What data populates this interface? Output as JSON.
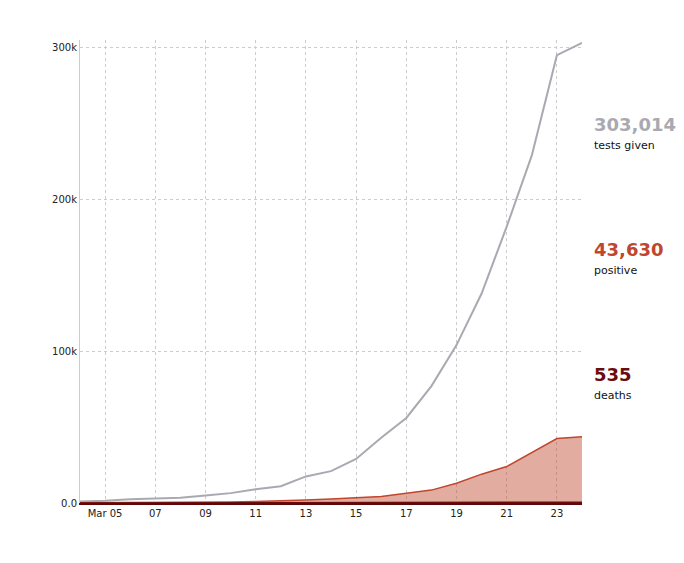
{
  "chart_data": {
    "type": "line",
    "x": [
      4,
      5,
      6,
      7,
      8,
      9,
      10,
      11,
      12,
      13,
      14,
      15,
      16,
      17,
      18,
      19,
      20,
      21,
      22,
      23,
      24
    ],
    "xlim": [
      4,
      24
    ],
    "xticks": [
      {
        "value": 5,
        "label": "Mar 05"
      },
      {
        "value": 7,
        "label": "07"
      },
      {
        "value": 9,
        "label": "09"
      },
      {
        "value": 11,
        "label": "11"
      },
      {
        "value": 13,
        "label": "13"
      },
      {
        "value": 15,
        "label": "15"
      },
      {
        "value": 17,
        "label": "17"
      },
      {
        "value": 19,
        "label": "19"
      },
      {
        "value": 21,
        "label": "21"
      },
      {
        "value": 23,
        "label": "23"
      }
    ],
    "ylim": [
      0,
      305000
    ],
    "yticks": [
      {
        "value": 0,
        "label": "0.0"
      },
      {
        "value": 100000,
        "label": "100k"
      },
      {
        "value": 200000,
        "label": "200k"
      },
      {
        "value": 300000,
        "label": "300k"
      }
    ],
    "grid": true,
    "series": [
      {
        "name": "tests given",
        "label": "303,014",
        "type": "line",
        "color": "#a9a9b1",
        "values": [
          1000,
          1500,
          2500,
          3000,
          3500,
          5000,
          6500,
          9000,
          11000,
          17500,
          21000,
          29000,
          43000,
          56000,
          77000,
          104000,
          138000,
          182000,
          229000,
          295000,
          303014
        ]
      },
      {
        "name": "positive",
        "label": "43,630",
        "type": "area",
        "color": "#c0462e",
        "values": [
          100,
          150,
          200,
          250,
          400,
          500,
          700,
          1000,
          1300,
          1900,
          2600,
          3300,
          4300,
          6400,
          8500,
          13000,
          19000,
          24000,
          33000,
          42500,
          43630
        ]
      },
      {
        "name": "deaths",
        "label": "535",
        "type": "area",
        "color": "#6b0d0d",
        "values": [
          10,
          12,
          15,
          19,
          22,
          26,
          30,
          38,
          45,
          55,
          65,
          80,
          100,
          130,
          170,
          220,
          290,
          360,
          430,
          500,
          535
        ]
      }
    ]
  }
}
